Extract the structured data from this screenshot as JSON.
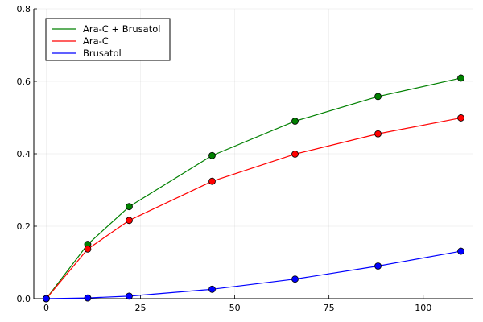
{
  "chart_data": {
    "type": "line",
    "title": "",
    "xlabel": "",
    "ylabel": "",
    "xlim": [
      -3.3,
      113.3
    ],
    "ylim": [
      0,
      0.8
    ],
    "xticks": [
      0,
      25,
      50,
      75,
      100
    ],
    "yticks": [
      0.0,
      0.2,
      0.4,
      0.6,
      0.8
    ],
    "xtick_labels": [
      "0",
      "25",
      "50",
      "75",
      "100"
    ],
    "ytick_labels": [
      "0.0",
      "0.2",
      "0.4",
      "0.6",
      "0.8"
    ],
    "grid": true,
    "legend_position": "top-left",
    "x": [
      0,
      11,
      22,
      44,
      66,
      88,
      110
    ],
    "series": [
      {
        "name": "Ara-C + Brusatol",
        "color": "#008000",
        "values": [
          0.0,
          0.15,
          0.254,
          0.395,
          0.49,
          0.558,
          0.609
        ]
      },
      {
        "name": "Ara-C",
        "color": "#ff0000",
        "values": [
          0.0,
          0.137,
          0.216,
          0.324,
          0.399,
          0.455,
          0.499
        ]
      },
      {
        "name": "Brusatol",
        "color": "#0000ff",
        "values": [
          0.0,
          0.002,
          0.007,
          0.026,
          0.054,
          0.09,
          0.131
        ]
      }
    ]
  }
}
